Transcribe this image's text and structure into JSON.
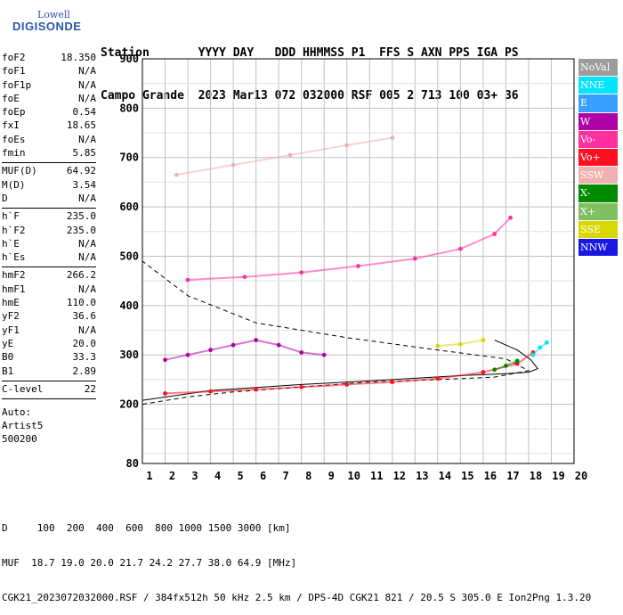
{
  "logo": {
    "line1": "Lowell",
    "line2": "DIGISONDE"
  },
  "header": {
    "line1": "Station       YYYY DAY   DDD HHMMSS P1  FFS S AXN PPS IGA PS",
    "line2": "Campo Grande  2023 Mar13 072 032000 RSF 005 2 713 100 03+ 36"
  },
  "params_groups": [
    [
      {
        "k": "foF2",
        "v": "18.350"
      },
      {
        "k": "foF1",
        "v": "N/A"
      },
      {
        "k": "foF1p",
        "v": "N/A"
      },
      {
        "k": "foE",
        "v": "N/A"
      },
      {
        "k": "foEp",
        "v": "0.54"
      },
      {
        "k": "fxI",
        "v": "18.65"
      },
      {
        "k": "foEs",
        "v": "N/A"
      },
      {
        "k": "fmin",
        "v": "5.85"
      }
    ],
    [
      {
        "k": "MUF(D)",
        "v": "64.92"
      },
      {
        "k": "M(D)",
        "v": "3.54"
      },
      {
        "k": "D",
        "v": "N/A"
      }
    ],
    [
      {
        "k": "h`F",
        "v": "235.0"
      },
      {
        "k": "h`F2",
        "v": "235.0"
      },
      {
        "k": "h`E",
        "v": "N/A"
      },
      {
        "k": "h`Es",
        "v": "N/A"
      }
    ],
    [
      {
        "k": "hmF2",
        "v": "266.2"
      },
      {
        "k": "hmF1",
        "v": "N/A"
      },
      {
        "k": "hmE",
        "v": "110.0"
      },
      {
        "k": "yF2",
        "v": "36.6"
      },
      {
        "k": "yF1",
        "v": "N/A"
      },
      {
        "k": "yE",
        "v": "20.0"
      },
      {
        "k": "B0",
        "v": "33.3"
      },
      {
        "k": "B1",
        "v": "2.89"
      }
    ],
    [
      {
        "k": "C-level",
        "v": "22"
      }
    ]
  ],
  "auto_lines": [
    "Auto:",
    "Artist5",
    "500200"
  ],
  "legend": [
    {
      "label": "NoVal",
      "color": "#9c9c9c"
    },
    {
      "label": "NNE",
      "color": "#00e5ff"
    },
    {
      "label": "E",
      "color": "#3aa0ff"
    },
    {
      "label": "W",
      "color": "#b000a8"
    },
    {
      "label": "Vo-",
      "color": "#ff2fa0"
    },
    {
      "label": "Vo+",
      "color": "#ff1020"
    },
    {
      "label": "SSW",
      "color": "#f0b0b0"
    },
    {
      "label": "X-",
      "color": "#008a00"
    },
    {
      "label": "X+",
      "color": "#80c060"
    },
    {
      "label": "SSE",
      "color": "#d8d800"
    },
    {
      "label": "NNW",
      "color": "#1818e0"
    }
  ],
  "footer": {
    "line1": "D     100  200  400  600  800 1000 1500 3000 [km]",
    "line2": "MUF  18.7 19.0 20.0 21.7 24.2 27.7 38.0 64.9 [MHz]",
    "line3": "CGK21_2023072032000.RSF / 384fx512h 50 kHz 2.5 km / DPS-4D CGK21 821 / 20.5 S 305.0 E Ion2Png 1.3.20"
  },
  "chart_data": {
    "type": "scatter",
    "title": "",
    "xlabel": "",
    "ylabel": "",
    "xlim": [
      1,
      20
    ],
    "ylim": [
      80,
      900
    ],
    "x_ticks": [
      1,
      2,
      3,
      4,
      5,
      6,
      7,
      8,
      9,
      10,
      11,
      12,
      13,
      14,
      15,
      16,
      17,
      18,
      19,
      20
    ],
    "y_ticks": [
      80,
      200,
      300,
      400,
      500,
      600,
      700,
      800,
      900
    ],
    "grid": true,
    "series": [
      {
        "name": "Vo+",
        "color": "#ff1020",
        "x": [
          2.0,
          4.0,
          6.0,
          8.0,
          10.0,
          12.0,
          14.0,
          16.0,
          17.5,
          18.2
        ],
        "y": [
          222,
          226,
          230,
          235,
          240,
          245,
          252,
          265,
          282,
          305
        ]
      },
      {
        "name": "Vo-",
        "color": "#ff2fa0",
        "x": [
          3.0,
          5.5,
          8.0,
          10.5,
          13.0,
          15.0,
          16.5,
          17.2
        ],
        "y": [
          452,
          458,
          467,
          480,
          495,
          515,
          545,
          578
        ]
      },
      {
        "name": "W",
        "color": "#b000a8",
        "x": [
          2.0,
          3.0,
          4.0,
          5.0,
          6.0,
          7.0,
          8.0,
          9.0
        ],
        "y": [
          290,
          300,
          310,
          320,
          330,
          320,
          305,
          300
        ]
      },
      {
        "name": "SSW",
        "color": "#f0b0b0",
        "x": [
          2.5,
          5.0,
          7.5,
          10.0,
          12.0
        ],
        "y": [
          665,
          685,
          705,
          725,
          740
        ]
      },
      {
        "name": "NNE",
        "color": "#00e5ff",
        "x": [
          18.2,
          18.5,
          18.8
        ],
        "y": [
          300,
          315,
          325
        ]
      },
      {
        "name": "SSE",
        "color": "#d8d800",
        "x": [
          14.0,
          15.0,
          16.0
        ],
        "y": [
          318,
          322,
          330
        ]
      },
      {
        "name": "X-",
        "color": "#008a00",
        "x": [
          16.5,
          17.0,
          17.5
        ],
        "y": [
          270,
          278,
          288
        ]
      }
    ],
    "fit_curve_solid": {
      "x": [
        1.0,
        4.0,
        8.0,
        12.0,
        15.0,
        17.0,
        18.0,
        18.4,
        18.1,
        17.5,
        16.5
      ],
      "y": [
        208,
        228,
        240,
        250,
        258,
        262,
        265,
        272,
        290,
        310,
        330
      ]
    },
    "fit_curve_dashed": {
      "x": [
        1.0,
        3.0,
        5.0,
        8.0,
        11.0,
        14.0,
        16.5,
        18.0,
        17.0,
        14.0,
        10.0,
        6.0,
        3.0,
        1.0
      ],
      "y": [
        200,
        215,
        225,
        235,
        245,
        250,
        255,
        268,
        292,
        310,
        335,
        365,
        420,
        490
      ]
    }
  }
}
